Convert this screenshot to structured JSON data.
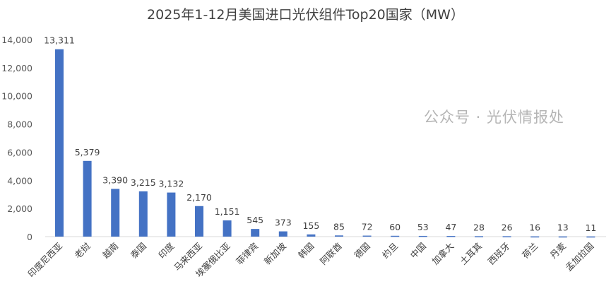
{
  "chart_data": {
    "type": "bar",
    "title": "2025年1-12月美国进口光伏组件Top20国家（MW）",
    "categories": [
      "印度尼西亚",
      "老挝",
      "越南",
      "泰国",
      "印度",
      "马来西亚",
      "埃塞俄比亚",
      "菲律宾",
      "新加坡",
      "韩国",
      "阿联酋",
      "德国",
      "约旦",
      "中国",
      "加拿大",
      "土耳其",
      "西班牙",
      "荷兰",
      "丹麦",
      "孟加拉国"
    ],
    "values": [
      13311,
      5379,
      3390,
      3215,
      3132,
      2170,
      1151,
      545,
      373,
      155,
      85,
      72,
      60,
      53,
      47,
      28,
      26,
      16,
      13,
      11
    ],
    "value_labels": [
      "13,311",
      "5,379",
      "3,390",
      "3,215",
      "3,132",
      "2,170",
      "1,151",
      "545",
      "373",
      "155",
      "85",
      "72",
      "60",
      "53",
      "47",
      "28",
      "26",
      "16",
      "13",
      "11"
    ],
    "ylim": [
      0,
      14000
    ],
    "yticks": [
      "0",
      "2,000",
      "4,000",
      "6,000",
      "8,000",
      "10,000",
      "12,000",
      "14,000"
    ],
    "grid": false,
    "bar_color": "#4472C4",
    "watermark": "公众号 · 光伏情报处"
  }
}
